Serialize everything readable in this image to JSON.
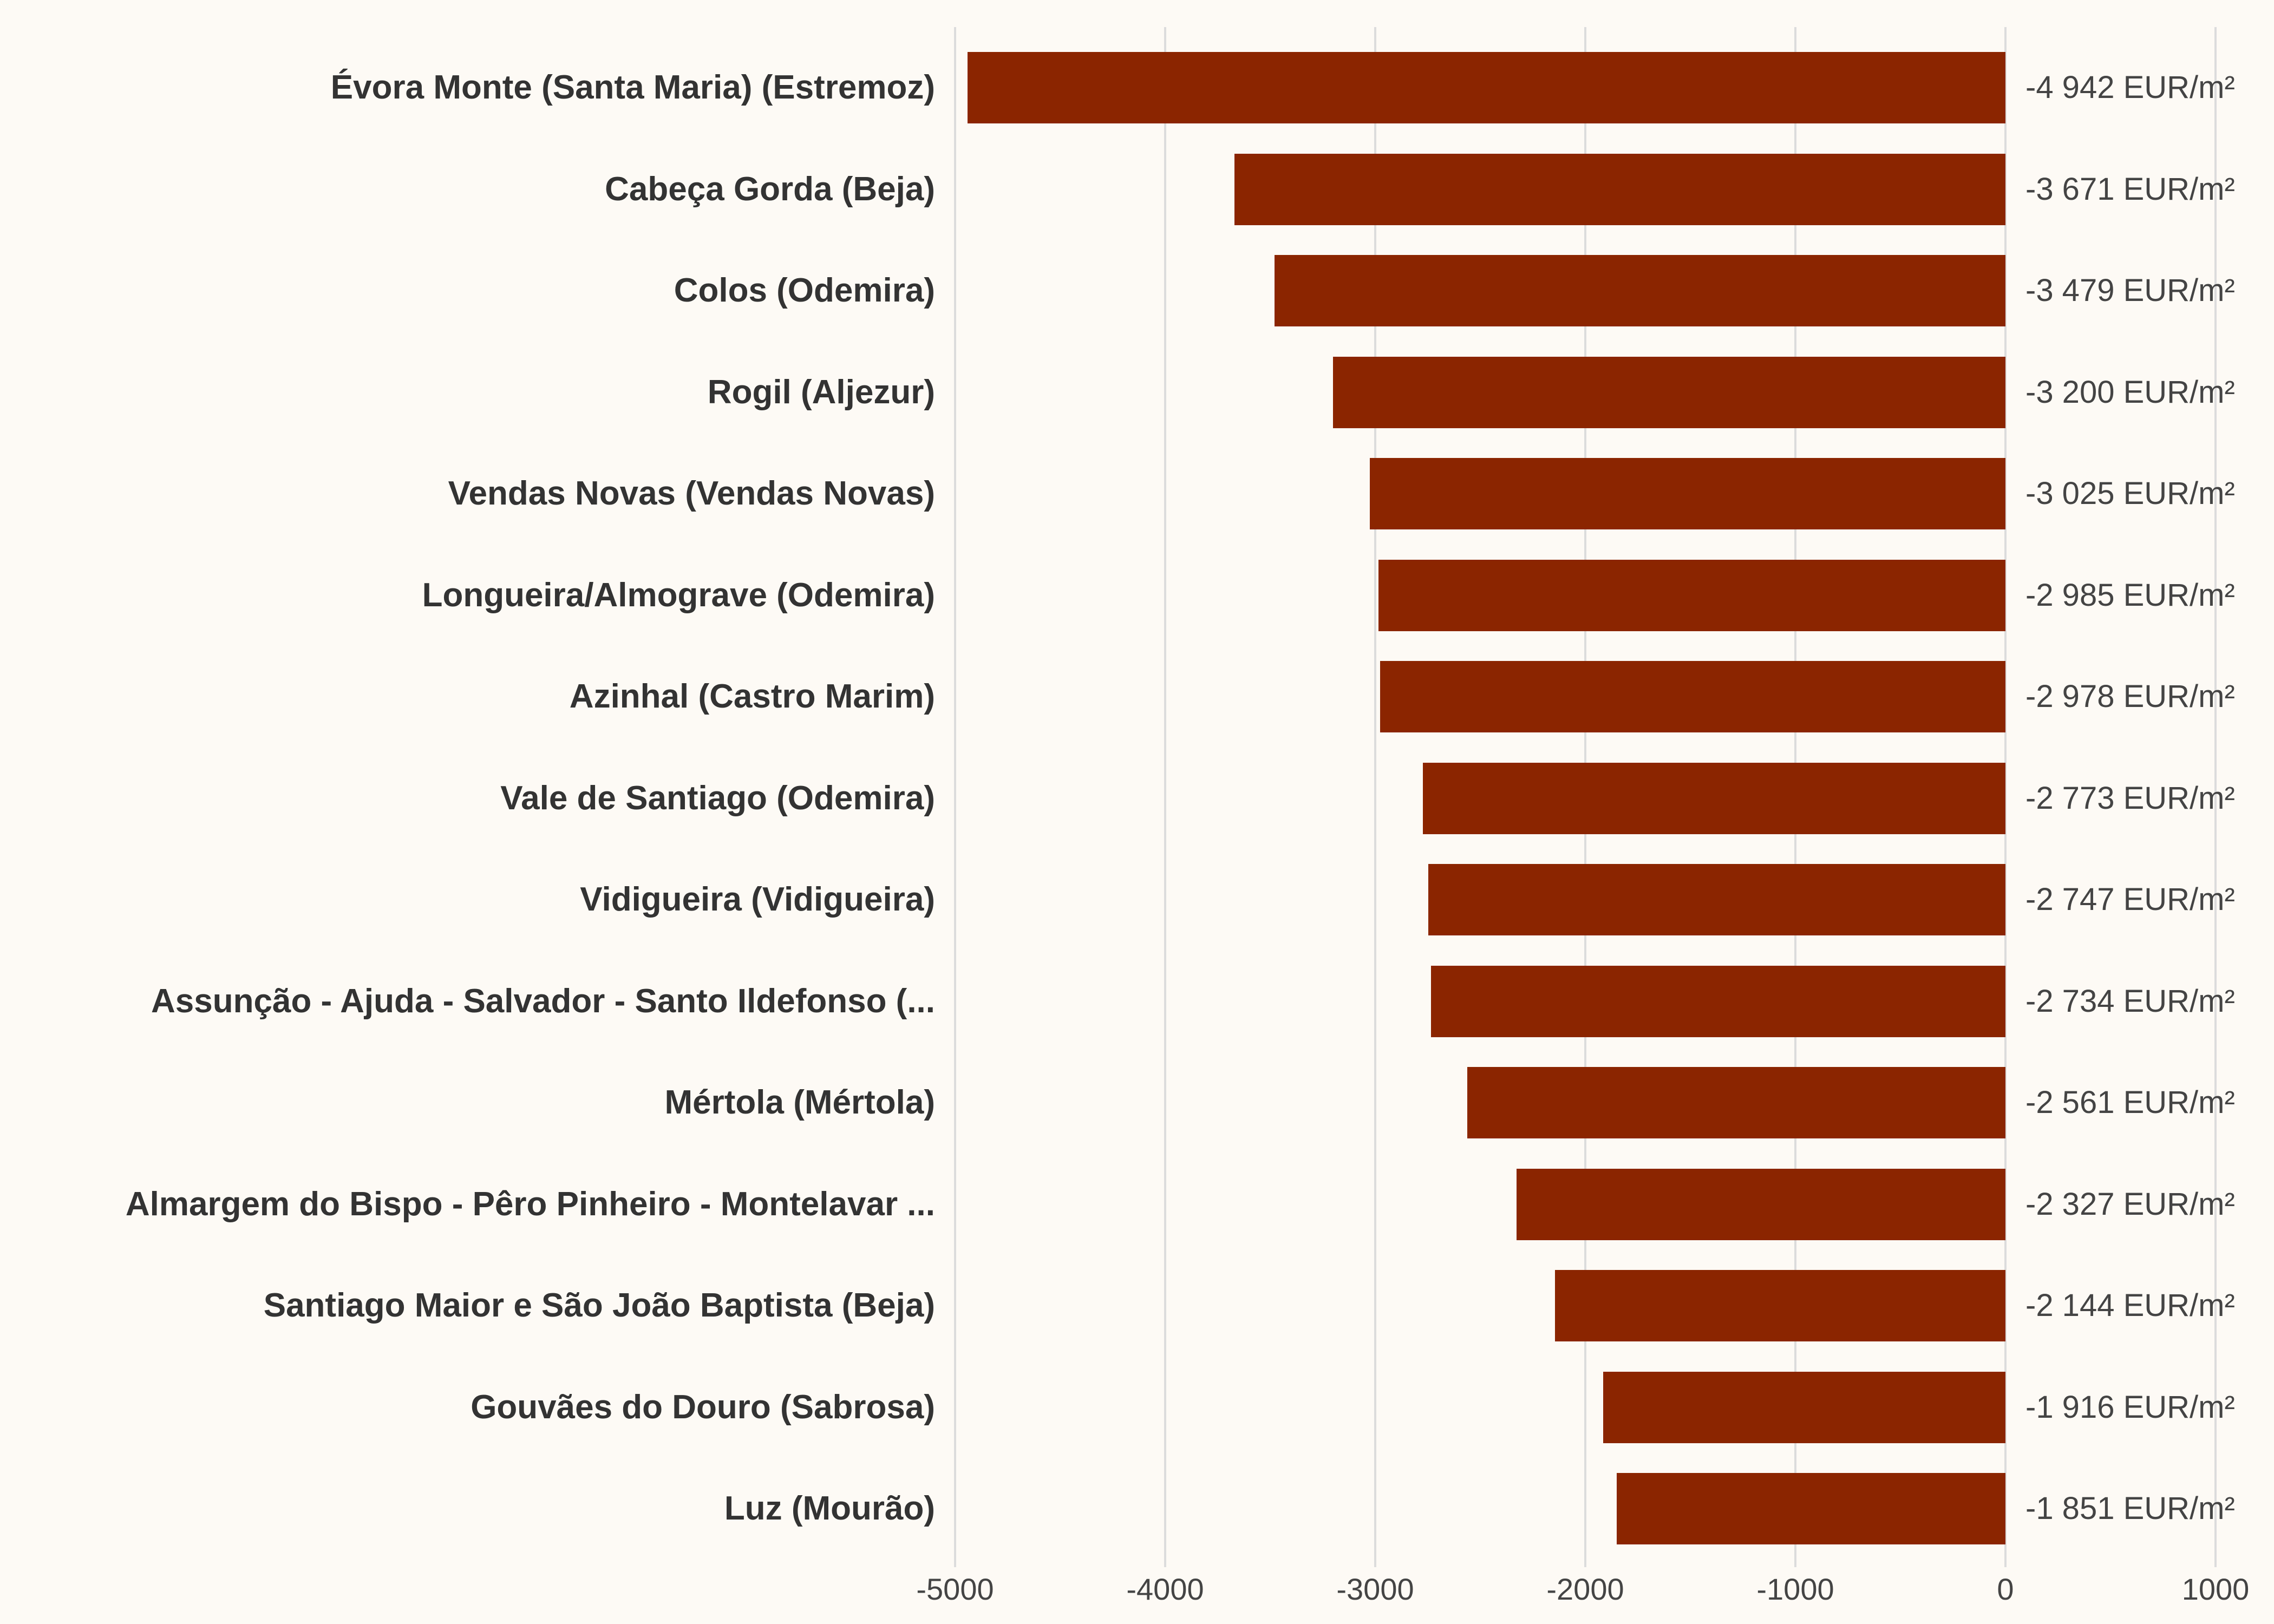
{
  "chart_data": {
    "type": "bar",
    "orientation": "horizontal",
    "title": "",
    "xlabel": "",
    "ylabel": "",
    "xlim": [
      -5000,
      1000
    ],
    "grid": true,
    "legend": null,
    "bar_color": "#8B2500",
    "value_unit": "EUR/m²",
    "x_ticks": [
      -5000,
      -4000,
      -3000,
      -2000,
      -1000,
      0,
      1000
    ],
    "x_tick_labels": [
      "-5000",
      "-4000",
      "-3000",
      "-2000",
      "-1000",
      "0",
      "1000"
    ],
    "categories": [
      "Évora Monte (Santa Maria) (Estremoz)",
      "Cabeça Gorda (Beja)",
      "Colos (Odemira)",
      "Rogil (Aljezur)",
      "Vendas Novas (Vendas Novas)",
      "Longueira/Almograve (Odemira)",
      "Azinhal (Castro Marim)",
      "Vale de Santiago (Odemira)",
      "Vidigueira (Vidigueira)",
      "Assunção - Ajuda - Salvador - Santo Ildefonso (...",
      "Mértola (Mértola)",
      "Almargem do Bispo - Pêro Pinheiro - Montelavar ...",
      "Santiago Maior e São João Baptista (Beja)",
      "Gouvães do Douro (Sabrosa)",
      "Luz (Mourão)"
    ],
    "values": [
      -4942,
      -3671,
      -3479,
      -3200,
      -3025,
      -2985,
      -2978,
      -2773,
      -2747,
      -2734,
      -2561,
      -2327,
      -2144,
      -1916,
      -1851
    ],
    "value_labels": [
      "-4 942 EUR/m²",
      "-3 671 EUR/m²",
      "-3 479 EUR/m²",
      "-3 200 EUR/m²",
      "-3 025 EUR/m²",
      "-2 985 EUR/m²",
      "-2 978 EUR/m²",
      "-2 773 EUR/m²",
      "-2 747 EUR/m²",
      "-2 734 EUR/m²",
      "-2 561 EUR/m²",
      "-2 327 EUR/m²",
      "-2 144 EUR/m²",
      "-1 916 EUR/m²",
      "-1 851 EUR/m²"
    ]
  }
}
